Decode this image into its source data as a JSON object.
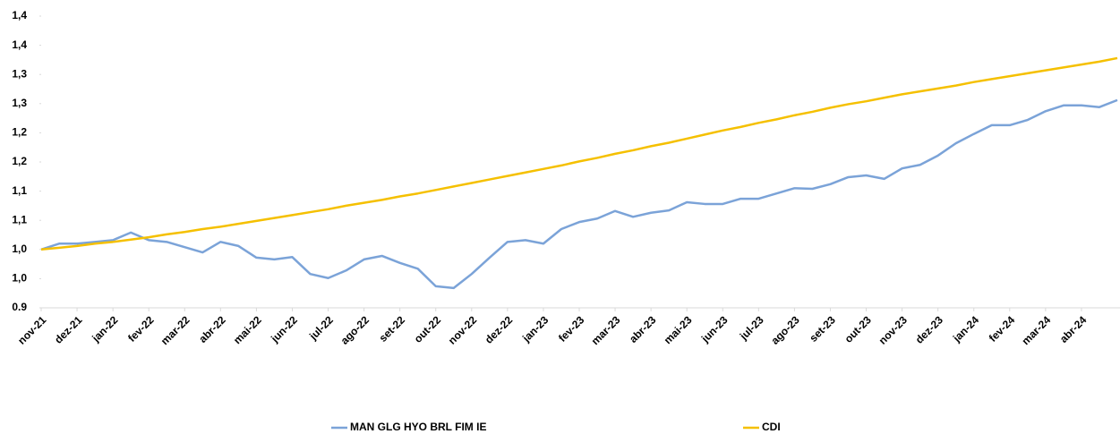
{
  "chart_data": {
    "type": "line",
    "categories": [
      "nov-21",
      null,
      "dez-21",
      null,
      "jan-22",
      null,
      "fev-22",
      null,
      "mar-22",
      null,
      "abr-22",
      null,
      "mai-22",
      null,
      "jun-22",
      null,
      "jul-22",
      null,
      "ago-22",
      null,
      "set-22",
      null,
      "out-22",
      null,
      "nov-22",
      null,
      "dez-22",
      null,
      "jan-23",
      null,
      "fev-23",
      null,
      "mar-23",
      null,
      "abr-23",
      null,
      "mai-23",
      null,
      "jun-23",
      null,
      "jul-23",
      null,
      "ago-23",
      null,
      "set-23",
      null,
      "out-23",
      null,
      "nov-23",
      null,
      "dez-23",
      null,
      "jan-24",
      null,
      "fev-24",
      null,
      "mar-24",
      null,
      "abr-24",
      null,
      null
    ],
    "series": [
      {
        "name": "MAN GLG HYO BRL FIM IE",
        "color": "#7ba3d8",
        "values": [
          1.0,
          1.01,
          1.01,
          1.013,
          1.016,
          1.029,
          1.016,
          1.013,
          1.004,
          0.995,
          1.013,
          1.006,
          0.986,
          0.983,
          0.987,
          0.958,
          0.951,
          0.964,
          0.983,
          0.989,
          0.977,
          0.967,
          0.937,
          0.934,
          0.958,
          0.986,
          1.013,
          1.016,
          1.01,
          1.035,
          1.047,
          1.053,
          1.066,
          1.056,
          1.063,
          1.067,
          1.081,
          1.078,
          1.078,
          1.087,
          1.087,
          1.096,
          1.105,
          1.104,
          1.112,
          1.124,
          1.127,
          1.121,
          1.139,
          1.145,
          1.161,
          1.182,
          1.198,
          1.213,
          1.213,
          1.222,
          1.237,
          1.247,
          1.247,
          1.244,
          1.256
        ]
      },
      {
        "name": "CDI",
        "color": "#f5c000",
        "values": [
          1.0,
          1.003,
          1.006,
          1.01,
          1.013,
          1.017,
          1.021,
          1.026,
          1.03,
          1.035,
          1.039,
          1.044,
          1.049,
          1.054,
          1.059,
          1.064,
          1.069,
          1.075,
          1.08,
          1.085,
          1.091,
          1.096,
          1.102,
          1.108,
          1.114,
          1.12,
          1.126,
          1.132,
          1.138,
          1.144,
          1.151,
          1.157,
          1.164,
          1.17,
          1.177,
          1.183,
          1.19,
          1.197,
          1.204,
          1.21,
          1.217,
          1.223,
          1.23,
          1.236,
          1.243,
          1.249,
          1.254,
          1.26,
          1.266,
          1.271,
          1.276,
          1.281,
          1.287,
          1.292,
          1.297,
          1.302,
          1.307,
          1.312,
          1.317,
          1.322,
          1.328
        ]
      }
    ],
    "ylim": [
      0.9,
      1.4
    ],
    "yticks": [
      0.9,
      {
        "value": 0.95,
        "label": "1,0"
      },
      {
        "value": 1.0,
        "label": "1,0"
      },
      {
        "value": 1.05,
        "label": "1,1"
      },
      {
        "value": 1.1,
        "label": "1,1"
      },
      {
        "value": 1.15,
        "label": "1,2"
      },
      {
        "value": 1.2,
        "label": "1,2"
      },
      {
        "value": 1.25,
        "label": "1,3"
      },
      {
        "value": 1.3,
        "label": "1,3"
      },
      {
        "value": 1.35,
        "label": "1,4"
      },
      {
        "value": 1.4,
        "label": "1,4"
      }
    ],
    "legend": "bottom"
  }
}
